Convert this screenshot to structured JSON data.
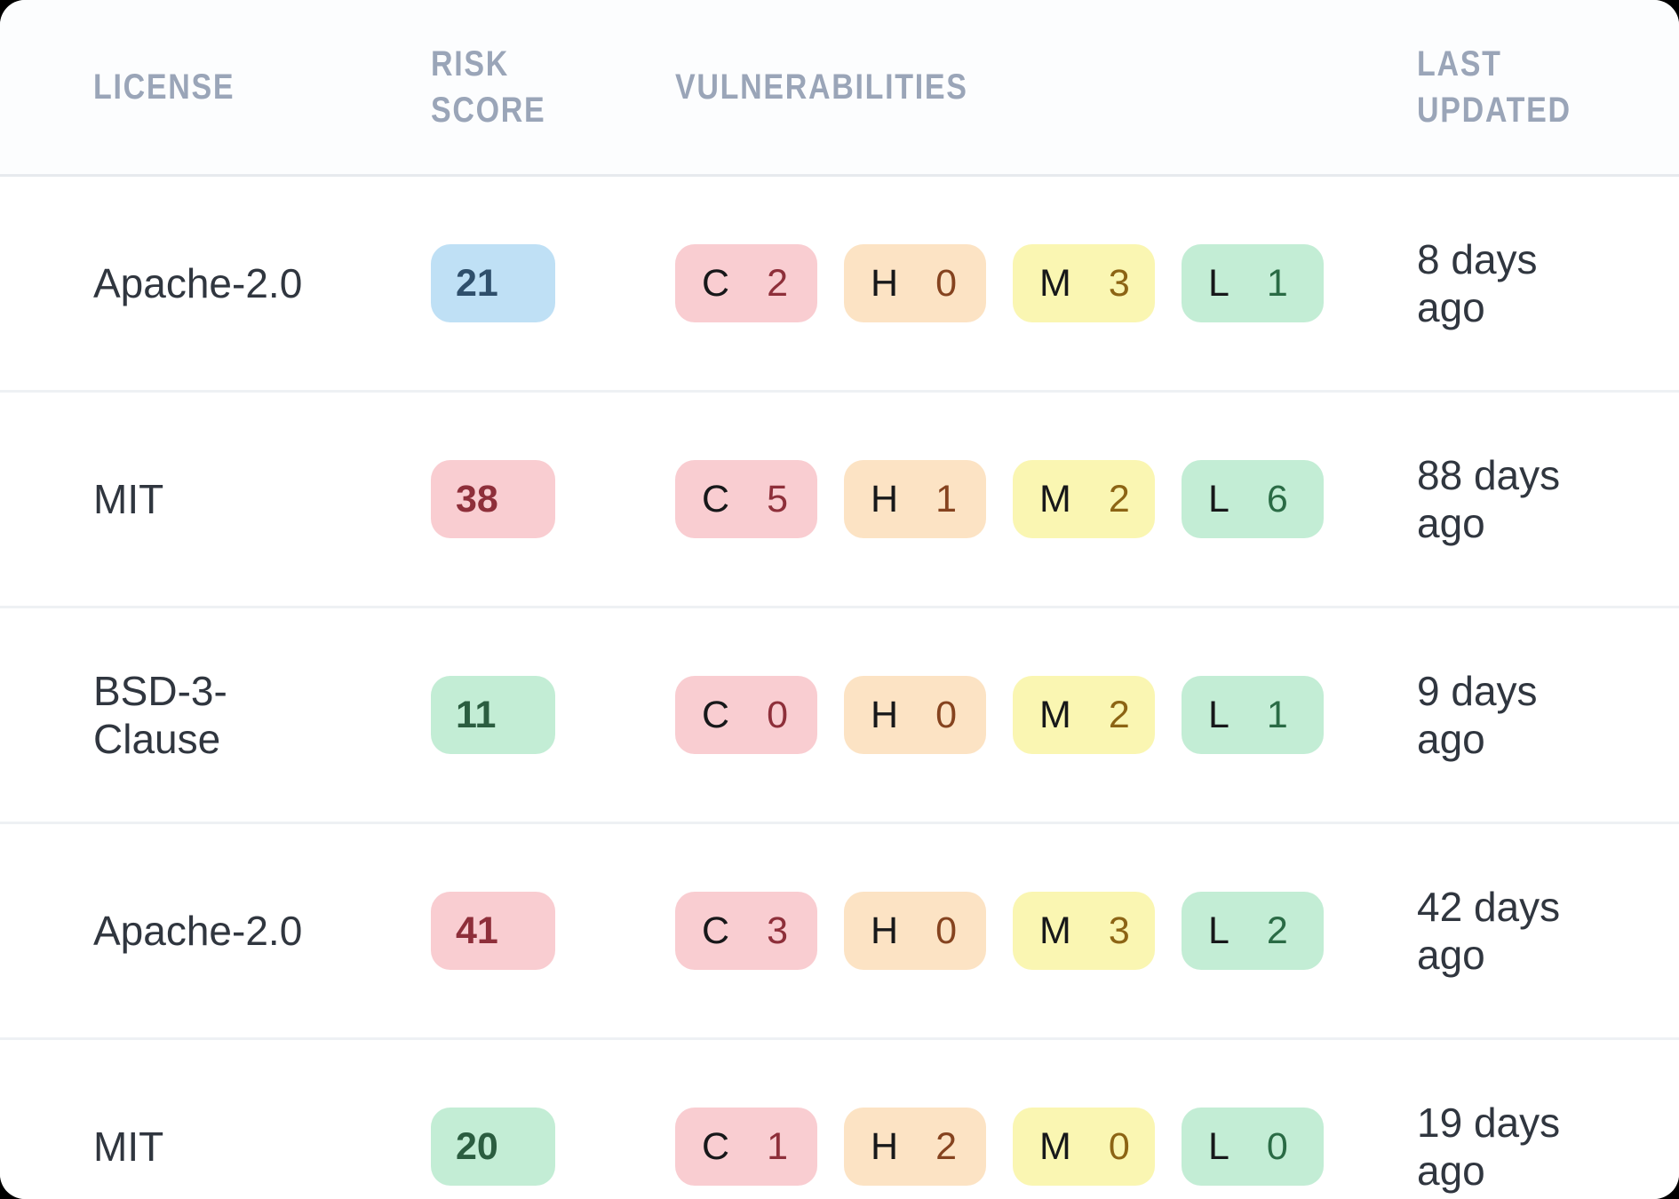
{
  "table": {
    "columns": [
      {
        "key": "license",
        "label": "LICENSE"
      },
      {
        "key": "risk",
        "label": "RISK SCORE"
      },
      {
        "key": "vulns",
        "label": "VULNERABILITIES"
      },
      {
        "key": "updated",
        "label": "LAST UPDATED"
      }
    ],
    "rows": [
      {
        "license": "Apache-2.0",
        "risk": {
          "value": "21",
          "color": "blue"
        },
        "vulns": [
          {
            "letter": "C",
            "count": "2",
            "severity": "critical"
          },
          {
            "letter": "H",
            "count": "0",
            "severity": "high"
          },
          {
            "letter": "M",
            "count": "3",
            "severity": "medium"
          },
          {
            "letter": "L",
            "count": "1",
            "severity": "low"
          }
        ],
        "updated": "8 days ago"
      },
      {
        "license": "MIT",
        "risk": {
          "value": "38",
          "color": "red"
        },
        "vulns": [
          {
            "letter": "C",
            "count": "5",
            "severity": "critical"
          },
          {
            "letter": "H",
            "count": "1",
            "severity": "high"
          },
          {
            "letter": "M",
            "count": "2",
            "severity": "medium"
          },
          {
            "letter": "L",
            "count": "6",
            "severity": "low"
          }
        ],
        "updated": "88 days ago"
      },
      {
        "license": "BSD-3-Clause",
        "risk": {
          "value": "11",
          "color": "green"
        },
        "vulns": [
          {
            "letter": "C",
            "count": "0",
            "severity": "critical"
          },
          {
            "letter": "H",
            "count": "0",
            "severity": "high"
          },
          {
            "letter": "M",
            "count": "2",
            "severity": "medium"
          },
          {
            "letter": "L",
            "count": "1",
            "severity": "low"
          }
        ],
        "updated": "9 days ago"
      },
      {
        "license": "Apache-2.0",
        "risk": {
          "value": "41",
          "color": "red"
        },
        "vulns": [
          {
            "letter": "C",
            "count": "3",
            "severity": "critical"
          },
          {
            "letter": "H",
            "count": "0",
            "severity": "high"
          },
          {
            "letter": "M",
            "count": "3",
            "severity": "medium"
          },
          {
            "letter": "L",
            "count": "2",
            "severity": "low"
          }
        ],
        "updated": "42 days ago"
      },
      {
        "license": "MIT",
        "risk": {
          "value": "20",
          "color": "green"
        },
        "vulns": [
          {
            "letter": "C",
            "count": "1",
            "severity": "critical"
          },
          {
            "letter": "H",
            "count": "2",
            "severity": "high"
          },
          {
            "letter": "M",
            "count": "0",
            "severity": "medium"
          },
          {
            "letter": "L",
            "count": "0",
            "severity": "low"
          }
        ],
        "updated": "19 days ago"
      }
    ]
  },
  "colors": {
    "risk": {
      "blue": {
        "bg": "#bfe0f5",
        "text": "#2f4f6b"
      },
      "red": {
        "bg": "#f9cdd1",
        "text": "#8e2f3a"
      },
      "green": {
        "bg": "#c3edd5",
        "text": "#2b5d40"
      }
    },
    "severity": {
      "critical": {
        "bg": "#f9cdd1",
        "num": "#8e2f3a"
      },
      "high": {
        "bg": "#fce3c4",
        "num": "#85431f"
      },
      "medium": {
        "bg": "#faf6b2",
        "num": "#8c6414"
      },
      "low": {
        "bg": "#c3edd5",
        "num": "#2a6b45"
      }
    },
    "header_text": "#9aa5b8",
    "row_text": "#30363f",
    "separator": "#eef1f4"
  }
}
